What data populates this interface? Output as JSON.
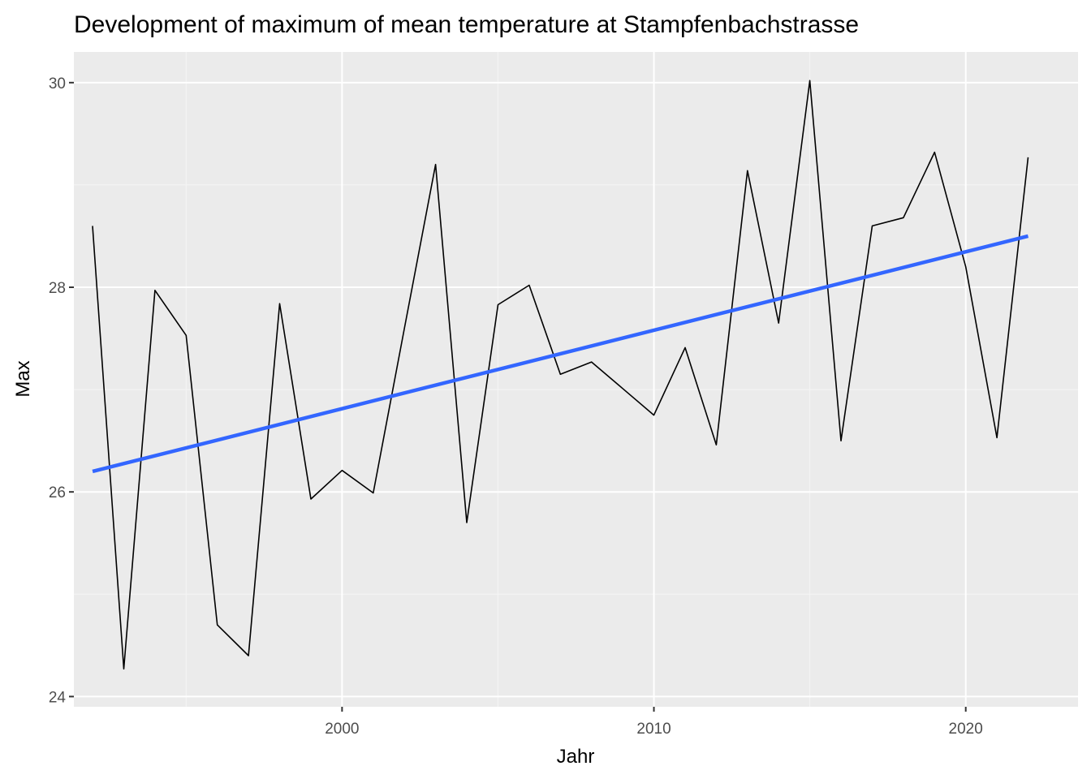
{
  "colors": {
    "panel_background": "#EBEBEB",
    "grid_major": "#FFFFFF",
    "grid_minor": "#F5F5F5",
    "line_color": "#000000",
    "trend_color": "#3366FF",
    "tick_text": "#4D4D4D",
    "tick_mark": "#333333"
  },
  "chart_data": {
    "type": "line",
    "title": "Development of maximum of mean temperature at Stampfenbachstrasse",
    "xlabel": "Jahr",
    "ylabel": "Max",
    "xlim": [
      1991.4,
      2023.6
    ],
    "ylim": [
      23.9,
      30.3
    ],
    "x_ticks": [
      2000,
      2010,
      2020
    ],
    "x_tick_labels": [
      "2000",
      "2010",
      "2020"
    ],
    "x_minor_ticks": [
      1995,
      2005,
      2015
    ],
    "y_ticks": [
      24,
      26,
      28,
      30
    ],
    "y_tick_labels": [
      "24",
      "26",
      "28",
      "30"
    ],
    "y_minor_ticks": [
      25,
      27,
      29
    ],
    "grid": true,
    "legend": "none",
    "series": [
      {
        "type": "line",
        "x": [
          1992,
          1993,
          1994,
          1995,
          1996,
          1997,
          1998,
          1999,
          2000,
          2001,
          2002,
          2003,
          2004,
          2005,
          2006,
          2007,
          2008,
          2009,
          2010,
          2011,
          2012,
          2013,
          2014,
          2015,
          2016,
          2017,
          2018,
          2019,
          2020,
          2021,
          2022
        ],
        "values": [
          28.6,
          24.27,
          27.97,
          27.53,
          24.7,
          24.4,
          27.84,
          25.93,
          26.21,
          25.99,
          27.6,
          29.2,
          25.7,
          27.83,
          28.02,
          27.15,
          27.27,
          27.01,
          26.75,
          27.41,
          26.46,
          29.14,
          27.65,
          30.02,
          26.5,
          28.6,
          28.68,
          29.32,
          28.2,
          26.53,
          29.27
        ]
      },
      {
        "type": "trend",
        "x": [
          1992,
          2022
        ],
        "values": [
          26.2,
          28.5
        ]
      }
    ]
  }
}
